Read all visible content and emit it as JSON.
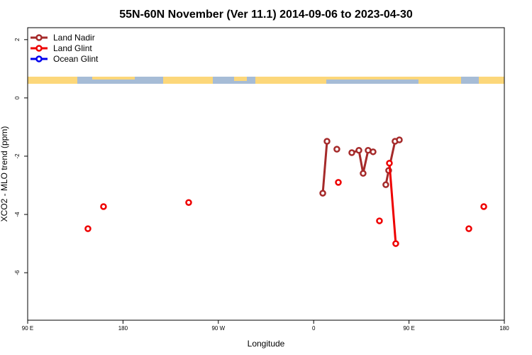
{
  "chart_data": {
    "type": "line",
    "title": "55N-60N November (Ver 11.1)   2014-09-06 to 2023-04-30",
    "x_label": "Longitude",
    "y_label": "XCO2 - MLO trend (ppm)",
    "xlim": [
      90,
      540
    ],
    "ylim": [
      -7.63,
      2.41
    ],
    "xticks": [
      {
        "value": 90,
        "label": "90 E"
      },
      180,
      {
        "value": 270,
        "label": "90 W"
      },
      {
        "value": 360,
        "label": "0"
      },
      {
        "value": 450,
        "label": "90 E"
      },
      {
        "value": 540,
        "label": "180"
      }
    ],
    "yticks": [
      2,
      0,
      -2,
      -4,
      -6
    ],
    "legend": "top-left",
    "series": [
      {
        "name": "Land Nadir",
        "color": "#a52a2a",
        "x": [
          368.6,
          372.6,
          null,
          381.9,
          null,
          396.0,
          402.7,
          406.7,
          411.4,
          416.1,
          null,
          428.1,
          430.8,
          436.8,
          440.9
        ],
        "values": [
          -3.27,
          -1.49,
          null,
          -1.76,
          null,
          -1.88,
          -1.8,
          -2.59,
          -1.8,
          -1.85,
          null,
          -2.98,
          -2.49,
          -1.49,
          -1.44
        ]
      },
      {
        "name": "Land Glint",
        "color": "#ee0000",
        "x": [
          146.9,
          null,
          161.6,
          null,
          242.0,
          null,
          383.3,
          null,
          422.1,
          null,
          431.5,
          437.5,
          null,
          506.5,
          null,
          520.6
        ],
        "values": [
          -4.49,
          null,
          -3.73,
          null,
          -3.59,
          null,
          -2.9,
          null,
          -4.22,
          null,
          -2.24,
          -5.0,
          null,
          -4.49,
          null,
          -3.73
        ]
      },
      {
        "name": "Ocean Glint",
        "color": "#0000ee",
        "x": [],
        "values": []
      }
    ]
  }
}
